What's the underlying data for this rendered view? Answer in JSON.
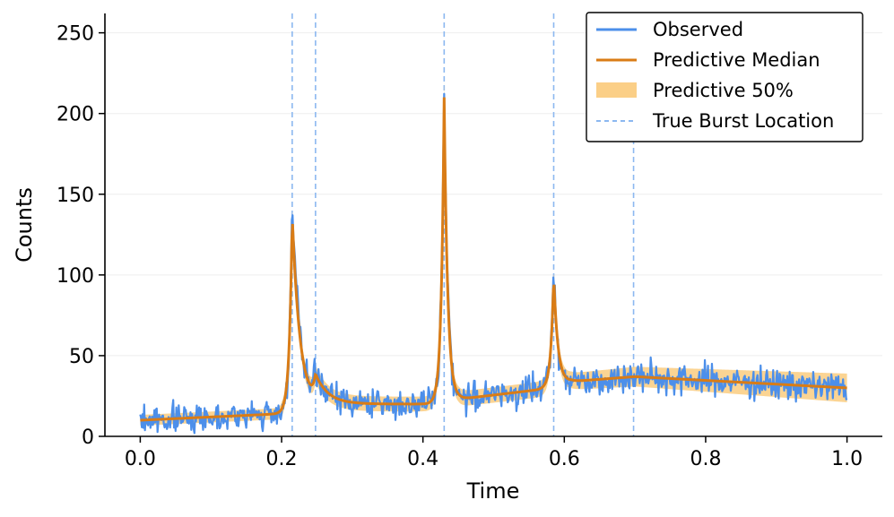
{
  "chart_data": {
    "type": "line",
    "title": "",
    "xlabel": "Time",
    "ylabel": "Counts",
    "xlim": [
      -0.05,
      1.05
    ],
    "ylim": [
      0,
      262
    ],
    "xticks": [
      0.0,
      0.2,
      0.4,
      0.6,
      0.8,
      1.0
    ],
    "xtick_labels": [
      "0.0",
      "0.2",
      "0.4",
      "0.6",
      "0.8",
      "1.0"
    ],
    "yticks": [
      0,
      50,
      100,
      150,
      200,
      250
    ],
    "ytick_labels": [
      "0",
      "50",
      "100",
      "150",
      "200",
      "250"
    ],
    "grid": "horizontal",
    "legend_position": "top-right",
    "burst_locations": [
      0.215,
      0.248,
      0.43,
      0.585,
      0.698
    ],
    "model": {
      "baseline_points": [
        [
          0.0,
          10
        ],
        [
          0.2,
          14
        ],
        [
          0.26,
          20
        ],
        [
          0.43,
          20
        ],
        [
          0.45,
          23
        ],
        [
          0.585,
          30
        ],
        [
          0.61,
          34
        ],
        [
          0.7,
          37
        ],
        [
          1.0,
          30
        ]
      ],
      "bursts": [
        {
          "t0": 0.215,
          "amp": 122,
          "tau": 0.011
        },
        {
          "t0": 0.248,
          "amp": 14,
          "tau": 0.02
        },
        {
          "t0": 0.43,
          "amp": 190,
          "tau": 0.005
        },
        {
          "t0": 0.585,
          "amp": 70,
          "tau": 0.006
        }
      ],
      "rise_tau": 0.004,
      "band_half_width": [
        3,
        4,
        8
      ],
      "observed_noise_sd": 4.5,
      "n_points": 900
    },
    "series": [
      {
        "name": "Observed",
        "kind": "line",
        "color": "#4c8fea"
      },
      {
        "name": "Predictive Median",
        "kind": "line",
        "color": "#d97c16"
      },
      {
        "name": "Predictive 50%",
        "kind": "band",
        "color": "#fbcf87"
      },
      {
        "name": "True Burst Location",
        "kind": "vline-dashed",
        "color": "#8cb8f0"
      }
    ]
  }
}
